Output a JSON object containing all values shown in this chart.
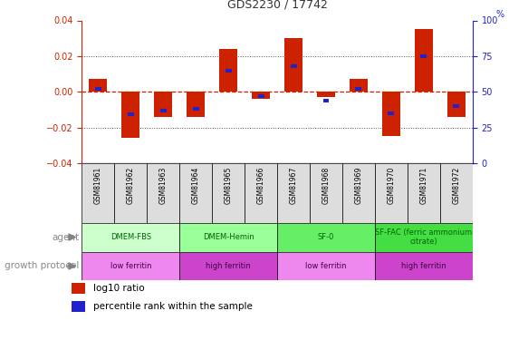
{
  "title": "GDS2230 / 17742",
  "samples": [
    "GSM81961",
    "GSM81962",
    "GSM81963",
    "GSM81964",
    "GSM81965",
    "GSM81966",
    "GSM81967",
    "GSM81968",
    "GSM81969",
    "GSM81970",
    "GSM81971",
    "GSM81972"
  ],
  "log10_ratio": [
    0.007,
    -0.026,
    -0.014,
    -0.014,
    0.024,
    -0.004,
    0.03,
    -0.003,
    0.007,
    -0.025,
    0.035,
    -0.014
  ],
  "percentile_rank": [
    52,
    34,
    37,
    38,
    65,
    47,
    68,
    44,
    52,
    35,
    75,
    40
  ],
  "ylim": [
    -0.04,
    0.04
  ],
  "yticks_left": [
    -0.04,
    -0.02,
    0.0,
    0.02,
    0.04
  ],
  "yticks_right": [
    0,
    25,
    50,
    75,
    100
  ],
  "agent_groups": [
    {
      "label": "DMEM-FBS",
      "start": 0,
      "end": 3,
      "color": "#ccffcc"
    },
    {
      "label": "DMEM-Hemin",
      "start": 3,
      "end": 6,
      "color": "#99ff99"
    },
    {
      "label": "SF-0",
      "start": 6,
      "end": 9,
      "color": "#66ee66"
    },
    {
      "label": "SF-FAC (ferric ammonium\ncitrate)",
      "start": 9,
      "end": 12,
      "color": "#44dd44"
    }
  ],
  "growth_groups": [
    {
      "label": "low ferritin",
      "start": 0,
      "end": 3,
      "color": "#ee88ee"
    },
    {
      "label": "high ferritin",
      "start": 3,
      "end": 6,
      "color": "#cc44cc"
    },
    {
      "label": "low ferritin",
      "start": 6,
      "end": 9,
      "color": "#ee88ee"
    },
    {
      "label": "high ferritin",
      "start": 9,
      "end": 12,
      "color": "#cc44cc"
    }
  ],
  "bar_color": "#cc2200",
  "pct_color": "#2222cc",
  "zero_line_color": "#cc2200",
  "dotted_line_color": "#555555",
  "title_color": "#333333",
  "agent_text_color": "#006600",
  "growth_text_color": "#440044",
  "label_text_color": "#888888"
}
